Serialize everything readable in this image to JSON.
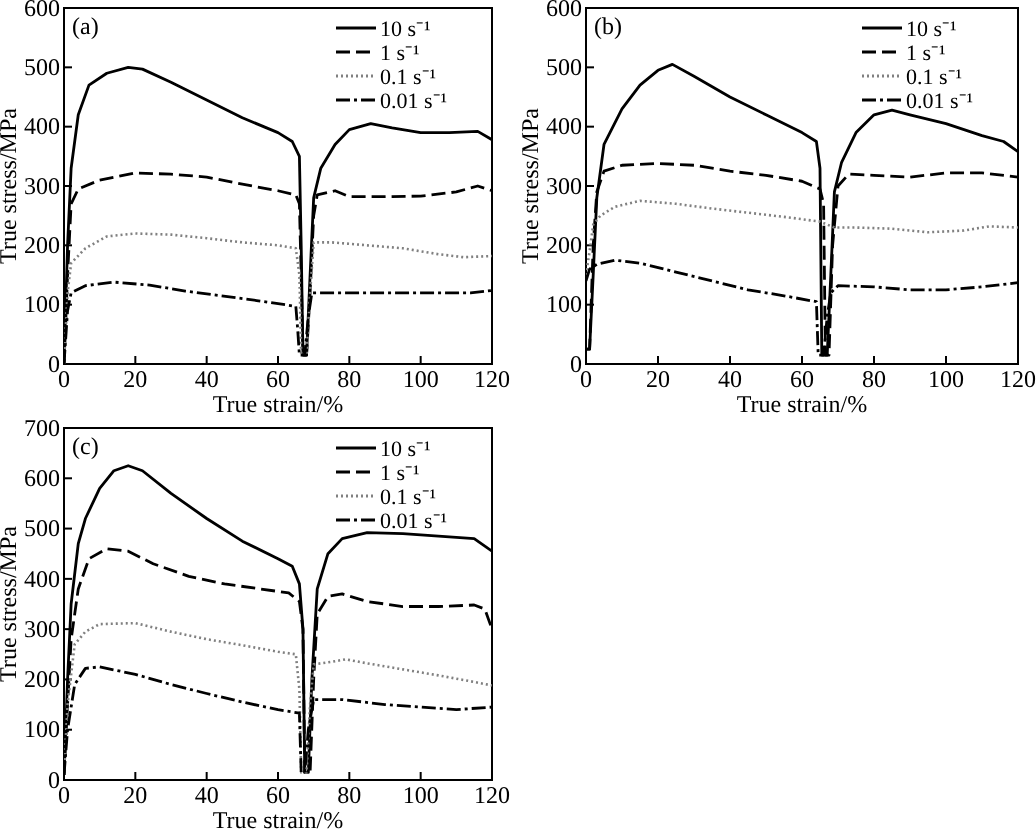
{
  "chart_data": [
    {
      "type": "line",
      "annotations": [
        "(a)"
      ],
      "xlabel": "True strain/%",
      "ylabel": "True stress/MPa",
      "xlim": [
        0,
        120
      ],
      "ylim": [
        0,
        600
      ],
      "xticks": [
        0,
        20,
        40,
        60,
        80,
        100,
        120
      ],
      "yticks": [
        0,
        100,
        200,
        300,
        400,
        500,
        600
      ],
      "legend": "top right",
      "grid": false,
      "series": [
        {
          "name": "10 s⁻¹",
          "color": "#000000",
          "line_style": "solid",
          "x": [
            0,
            1,
            2,
            4,
            7,
            12,
            18,
            22,
            30,
            40,
            50,
            60,
            64,
            66,
            66.5,
            67,
            68,
            69,
            70,
            72,
            76,
            80,
            86,
            92,
            100,
            108,
            116,
            120
          ],
          "values": [
            0,
            200,
            330,
            420,
            470,
            490,
            500,
            497,
            475,
            445,
            415,
            390,
            375,
            350,
            200,
            15,
            15,
            150,
            280,
            330,
            370,
            395,
            405,
            398,
            390,
            390,
            392,
            378
          ]
        },
        {
          "name": "1 s⁻¹",
          "color": "#000000",
          "line_style": "dashed",
          "x": [
            0,
            1,
            2,
            4,
            10,
            20,
            30,
            40,
            50,
            60,
            65,
            66,
            66.5,
            67,
            68,
            69,
            70,
            71,
            76,
            80,
            90,
            100,
            110,
            116,
            120
          ],
          "values": [
            0,
            150,
            270,
            295,
            310,
            322,
            320,
            315,
            303,
            292,
            285,
            270,
            150,
            15,
            15,
            120,
            250,
            285,
            292,
            282,
            282,
            283,
            290,
            300,
            292
          ]
        },
        {
          "name": "0.1 s⁻¹",
          "color": "#808080",
          "line_style": "dotted",
          "x": [
            0,
            1,
            2,
            6,
            12,
            20,
            30,
            40,
            50,
            60,
            65,
            66,
            66.5,
            68,
            69,
            70,
            75,
            85,
            95,
            105,
            112,
            120
          ],
          "values": [
            0,
            120,
            170,
            195,
            215,
            220,
            218,
            212,
            205,
            200,
            195,
            150,
            15,
            15,
            120,
            205,
            205,
            200,
            195,
            185,
            180,
            182
          ]
        },
        {
          "name": "0.01 s⁻¹",
          "color": "#000000",
          "line_style": "dashdot",
          "x": [
            0,
            1,
            2,
            6,
            14,
            24,
            34,
            44,
            54,
            62,
            65,
            65.5,
            66,
            67.5,
            68.5,
            69.5,
            80,
            100,
            114,
            120
          ],
          "values": [
            0,
            90,
            120,
            132,
            138,
            133,
            123,
            115,
            107,
            100,
            97,
            60,
            15,
            15,
            80,
            120,
            120,
            120,
            120,
            124
          ]
        }
      ]
    },
    {
      "type": "line",
      "annotations": [
        "(b)"
      ],
      "xlabel": "True strain/%",
      "ylabel": "True stress/MPa",
      "xlim": [
        0,
        120
      ],
      "ylim": [
        0,
        600
      ],
      "xticks": [
        0,
        20,
        40,
        60,
        80,
        100,
        120
      ],
      "yticks": [
        0,
        100,
        200,
        300,
        400,
        500,
        600
      ],
      "legend": "top right",
      "grid": false,
      "series": [
        {
          "name": "10 s⁻¹",
          "color": "#000000",
          "line_style": "solid",
          "x": [
            0,
            1,
            2,
            3,
            5,
            10,
            15,
            20,
            24,
            30,
            40,
            50,
            60,
            64,
            65,
            65.5,
            67,
            68,
            69,
            71,
            75,
            80,
            85,
            90,
            100,
            110,
            116,
            120
          ],
          "values": [
            25,
            25,
            150,
            280,
            370,
            430,
            470,
            495,
            505,
            485,
            450,
            420,
            390,
            375,
            330,
            15,
            15,
            150,
            290,
            340,
            390,
            420,
            428,
            420,
            405,
            385,
            375,
            358
          ]
        },
        {
          "name": "1 s⁻¹",
          "color": "#000000",
          "line_style": "dashed",
          "x": [
            0,
            1,
            2,
            3,
            5,
            10,
            20,
            30,
            40,
            50,
            60,
            65,
            66,
            66.5,
            67.5,
            68.5,
            70,
            73,
            80,
            90,
            100,
            110,
            120
          ],
          "values": [
            25,
            25,
            200,
            290,
            325,
            335,
            338,
            335,
            325,
            318,
            308,
            295,
            270,
            15,
            15,
            200,
            300,
            320,
            318,
            315,
            322,
            322,
            315
          ]
        },
        {
          "name": "0.1 s⁻¹",
          "color": "#808080",
          "line_style": "dotted",
          "x": [
            0,
            1,
            2,
            4,
            8,
            15,
            25,
            35,
            45,
            55,
            65,
            69,
            75,
            85,
            95,
            105,
            112,
            120
          ],
          "values": [
            150,
            190,
            235,
            250,
            265,
            275,
            270,
            262,
            255,
            248,
            240,
            230,
            230,
            228,
            222,
            225,
            232,
            230
          ]
        },
        {
          "name": "0.01 s⁻¹",
          "color": "#000000",
          "line_style": "dashdot",
          "x": [
            0,
            1,
            3,
            8,
            15,
            25,
            35,
            45,
            55,
            64,
            64.5,
            66,
            67,
            68,
            70,
            80,
            90,
            100,
            110,
            120
          ],
          "values": [
            140,
            160,
            168,
            175,
            170,
            155,
            140,
            125,
            115,
            105,
            15,
            15,
            80,
            120,
            132,
            130,
            125,
            125,
            130,
            137
          ]
        }
      ]
    },
    {
      "type": "line",
      "annotations": [
        "(c)"
      ],
      "xlabel": "True strain/%",
      "ylabel": "True stress/MPa",
      "xlim": [
        0,
        120
      ],
      "ylim": [
        0,
        700
      ],
      "xticks": [
        0,
        20,
        40,
        60,
        80,
        100,
        120
      ],
      "yticks": [
        0,
        100,
        200,
        300,
        400,
        500,
        600,
        700
      ],
      "legend": "top right",
      "grid": false,
      "series": [
        {
          "name": "10 s⁻¹",
          "color": "#000000",
          "line_style": "solid",
          "x": [
            0,
            1,
            2,
            4,
            6,
            10,
            14,
            18,
            22,
            30,
            40,
            50,
            60,
            64,
            66,
            67,
            67.5,
            68.5,
            69.5,
            71,
            74,
            78,
            85,
            95,
            105,
            115,
            120
          ],
          "values": [
            10,
            200,
            350,
            470,
            520,
            580,
            615,
            625,
            615,
            570,
            520,
            475,
            440,
            425,
            390,
            300,
            15,
            15,
            200,
            380,
            450,
            480,
            492,
            490,
            485,
            480,
            455
          ]
        },
        {
          "name": "1 s⁻¹",
          "color": "#000000",
          "line_style": "dashed",
          "x": [
            0,
            1,
            2,
            4,
            7,
            12,
            18,
            25,
            35,
            45,
            55,
            63,
            66,
            67,
            67.5,
            69,
            70,
            71,
            74,
            78,
            85,
            95,
            105,
            115,
            118,
            120
          ],
          "values": [
            10,
            150,
            280,
            380,
            440,
            460,
            455,
            430,
            405,
            390,
            380,
            372,
            355,
            300,
            15,
            15,
            200,
            330,
            365,
            370,
            355,
            345,
            345,
            348,
            340,
            300
          ]
        },
        {
          "name": "0.1 s⁻¹",
          "color": "#808080",
          "line_style": "dotted",
          "x": [
            0,
            1,
            3,
            6,
            10,
            20,
            30,
            40,
            50,
            60,
            65,
            66,
            66.5,
            68,
            69,
            70,
            75,
            79,
            85,
            95,
            105,
            115,
            120
          ],
          "values": [
            10,
            150,
            270,
            295,
            310,
            312,
            295,
            280,
            268,
            255,
            250,
            180,
            15,
            15,
            150,
            230,
            235,
            240,
            232,
            220,
            208,
            195,
            188
          ]
        },
        {
          "name": "0.01 s⁻¹",
          "color": "#000000",
          "line_style": "dashdot",
          "x": [
            0,
            1,
            3,
            6,
            10,
            20,
            30,
            40,
            50,
            60,
            66,
            66.5,
            67.5,
            68.5,
            70,
            78,
            90,
            100,
            110,
            120
          ],
          "values": [
            10,
            100,
            190,
            222,
            225,
            210,
            190,
            172,
            155,
            140,
            133,
            15,
            15,
            100,
            160,
            160,
            150,
            145,
            140,
            145
          ]
        }
      ]
    }
  ]
}
